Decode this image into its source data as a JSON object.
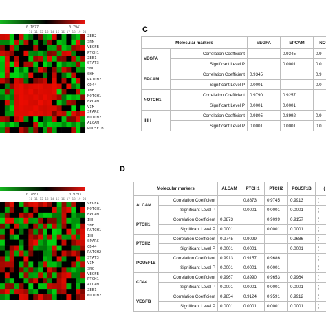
{
  "heatmap_top": {
    "scale_left": "",
    "scale_mid": "0.1877",
    "scale_right": "0.7941",
    "col_labels": "10 11 12 13 14 15 16 17 18 19 20",
    "genes": [
      "ZEB2",
      "SNN",
      "VEGFB",
      "PTCH1",
      "ZEB1",
      "STAT3",
      "SMO",
      "SHH",
      "PATCH2",
      "CD44",
      "IHH",
      "NOTCH1",
      "EPCAM",
      "VIM",
      "SPARC",
      "NOTCH2",
      "ALCAM",
      "POU5F1B"
    ]
  },
  "heatmap_bottom": {
    "scale_left": "",
    "scale_mid": "0.7881",
    "scale_right": "0.9293",
    "col_labels": "10 11 12 13 14 15 16 17 18 19 20",
    "genes": [
      "VEGFA",
      "NOTCH1",
      "EPCAM",
      "IHH",
      "SHH",
      "PATCH1",
      "IHH",
      "SPARC",
      "CD44",
      "PATCH2",
      "STAT3",
      "VIM",
      "SMO",
      "VEGFB",
      "PTCH1",
      "ALCAM",
      "ZEB1",
      "NOTCH2"
    ]
  },
  "panel_c": {
    "letter": "C",
    "header": [
      "Molecular markers",
      "VEGFA",
      "EPCAM",
      "NOTC"
    ],
    "rows": [
      {
        "name": "VEGFA",
        "cc": [
          "",
          "0.9345",
          "0.9"
        ],
        "p": [
          "",
          "0.0001",
          "0.0"
        ]
      },
      {
        "name": "EPCAM",
        "cc": [
          "0.9345",
          "",
          "0.9"
        ],
        "p": [
          "0.0001",
          "",
          "0.0"
        ]
      },
      {
        "name": "NOTCH1",
        "cc": [
          "0.9790",
          "0.9257",
          ""
        ],
        "p": [
          "0.0001",
          "0.0001",
          ""
        ]
      },
      {
        "name": "IHH",
        "cc": [
          "0.9805",
          "0.8992",
          "0.9"
        ],
        "p": [
          "0.0001",
          "0.0001",
          "0.0"
        ]
      }
    ]
  },
  "panel_d": {
    "letter": "D",
    "header": [
      "Molecular markers",
      "ALCAM",
      "PTCH1",
      "PTCH2",
      "POU5F1B",
      "("
    ],
    "rows": [
      {
        "name": "ALCAM",
        "cc": [
          "",
          "0.8873",
          "0.9745",
          "0.9913",
          "("
        ],
        "p": [
          "",
          "0.0001",
          "0.0001",
          "0.0001",
          "("
        ]
      },
      {
        "name": "PTCH1",
        "cc": [
          "0.8873",
          "",
          "0.9099",
          "0.9157",
          "("
        ],
        "p": [
          "0.0001",
          "",
          "0.0001",
          "0.0001",
          "("
        ]
      },
      {
        "name": "PTCH2",
        "cc": [
          "0.9745",
          "0.9099",
          "",
          "0.9686",
          "("
        ],
        "p": [
          "0.0001",
          "0.0001",
          "",
          "0.0001",
          "("
        ]
      },
      {
        "name": "POU5F1B",
        "cc": [
          "0.9913",
          "0.9157",
          "0.9686",
          "",
          "("
        ],
        "p": [
          "0.0001",
          "0.0001",
          "0.0001",
          "",
          "("
        ]
      },
      {
        "name": "CD44",
        "cc": [
          "0.9967",
          "0.8990",
          "0.9653",
          "0.9964",
          "("
        ],
        "p": [
          "0.0001",
          "0.0001",
          "0.0001",
          "0.0001",
          "("
        ]
      },
      {
        "name": "VEGFB",
        "cc": [
          "0.9854",
          "0.9124",
          "0.9591",
          "0.9912",
          "("
        ],
        "p": [
          "0.0001",
          "0.0001",
          "0.0001",
          "0.0001",
          "("
        ]
      }
    ]
  },
  "row_labels": {
    "cc": "Correlation Coefficient",
    "p": "Significant Level P"
  },
  "colors": {
    "red": "#e8150f",
    "green": "#14b81e",
    "black": "#000000"
  }
}
